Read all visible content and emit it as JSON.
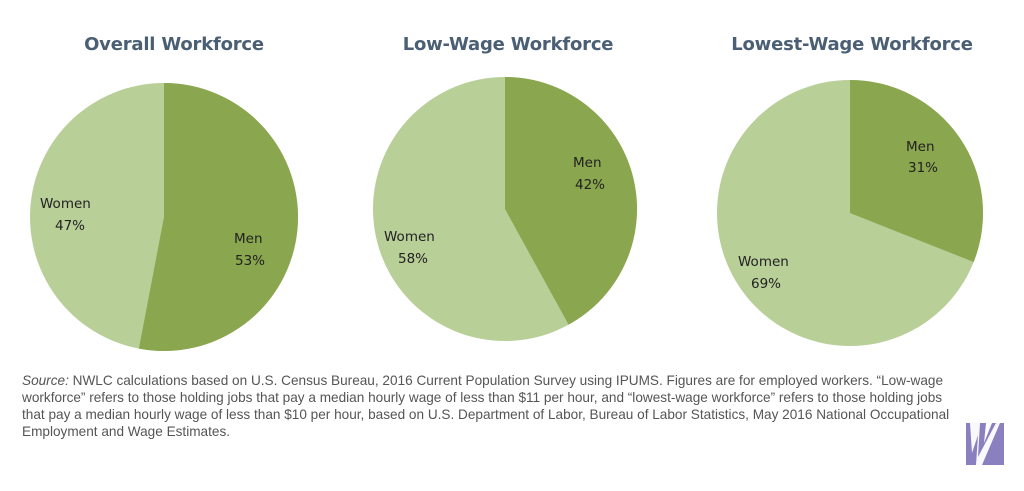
{
  "charts": [
    {
      "title": "Overall Workforce",
      "women_label": "Women",
      "women_pct": "47%",
      "men_label": "Men",
      "men_pct": "53%"
    },
    {
      "title": "Low-Wage Workforce",
      "women_label": "Women",
      "women_pct": "58%",
      "men_label": "Men",
      "men_pct": "42%"
    },
    {
      "title": "Lowest-Wage Workforce",
      "women_label": "Women",
      "women_pct": "69%",
      "men_label": "Men",
      "men_pct": "31%"
    }
  ],
  "source": {
    "prefix": "Source:",
    "text": " NWLC calculations based on U.S. Census Bureau, 2016 Current Population Survey using IPUMS. Figures are for employed workers. “Low-wage workforce” refers to those holding jobs that pay a median hourly wage of less than $11 per hour, and “lowest-wage workforce” refers to those holding jobs that pay a median hourly wage of less than $10 per hour, based on U.S. Department of Labor, Bureau of Labor Statistics, May 2016 National Occupational Employment and Wage Estimates."
  },
  "colors": {
    "men": "#8aa64e",
    "women": "#b9cf98",
    "title": "#4a5f73"
  },
  "chart_data": [
    {
      "type": "pie",
      "title": "Overall Workforce",
      "categories": [
        "Men",
        "Women"
      ],
      "values": [
        53,
        47
      ]
    },
    {
      "type": "pie",
      "title": "Low-Wage Workforce",
      "categories": [
        "Men",
        "Women"
      ],
      "values": [
        42,
        58
      ]
    },
    {
      "type": "pie",
      "title": "Lowest-Wage Workforce",
      "categories": [
        "Men",
        "Women"
      ],
      "values": [
        31,
        69
      ]
    }
  ]
}
